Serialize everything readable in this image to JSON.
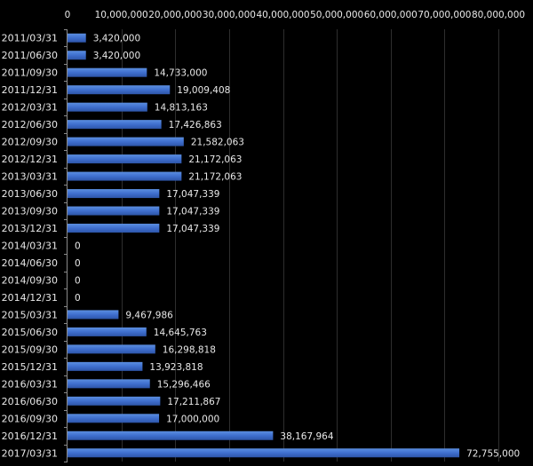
{
  "chart_data": {
    "type": "bar",
    "orientation": "horizontal",
    "title": "",
    "xlabel": "",
    "ylabel": "",
    "xlim": [
      0,
      80000000
    ],
    "x_ticks": [
      0,
      10000000,
      20000000,
      30000000,
      40000000,
      50000000,
      60000000,
      70000000,
      80000000
    ],
    "x_tick_labels": [
      "0",
      "10,000,000",
      "20,000,000",
      "30,000,000",
      "40,000,000",
      "50,000,000",
      "60,000,000",
      "70,000,000",
      "80,000,000"
    ],
    "x_axis_position": "top",
    "grid": true,
    "legend": "none",
    "categories": [
      "2011/03/31",
      "2011/06/30",
      "2011/09/30",
      "2011/12/31",
      "2012/03/31",
      "2012/06/30",
      "2012/09/30",
      "2012/12/31",
      "2013/03/31",
      "2013/06/30",
      "2013/09/30",
      "2013/12/31",
      "2014/03/31",
      "2014/06/30",
      "2014/09/30",
      "2014/12/31",
      "2015/03/31",
      "2015/06/30",
      "2015/09/30",
      "2015/12/31",
      "2016/03/31",
      "2016/06/30",
      "2016/09/30",
      "2016/12/31",
      "2017/03/31"
    ],
    "values": [
      3420000,
      3420000,
      14733000,
      19009408,
      14813163,
      17426863,
      21582063,
      21172063,
      21172063,
      17047339,
      17047339,
      17047339,
      0,
      0,
      0,
      0,
      9467986,
      14645763,
      16298818,
      13923818,
      15296466,
      17211867,
      17000000,
      38167964,
      72755000
    ],
    "data_labels": [
      "3,420,000",
      "3,420,000",
      "14,733,000",
      "19,009,408",
      "14,813,163",
      "17,426,863",
      "21,582,063",
      "21,172,063",
      "21,172,063",
      "17,047,339",
      "17,047,339",
      "17,047,339",
      "0",
      "0",
      "0",
      "0",
      "9,467,986",
      "14,645,763",
      "16,298,818",
      "13,923,818",
      "15,296,466",
      "17,211,867",
      "17,000,000",
      "38,167,964",
      "72,755,000"
    ],
    "colors": {
      "background": "#000000",
      "bar_top": "#5b8ee0",
      "bar_mid": "#3f6fce",
      "bar_bottom": "#2d55a8",
      "gridline": "#2e2e2e",
      "axis": "#8a8a8a",
      "text": "#e8e8e8"
    }
  }
}
